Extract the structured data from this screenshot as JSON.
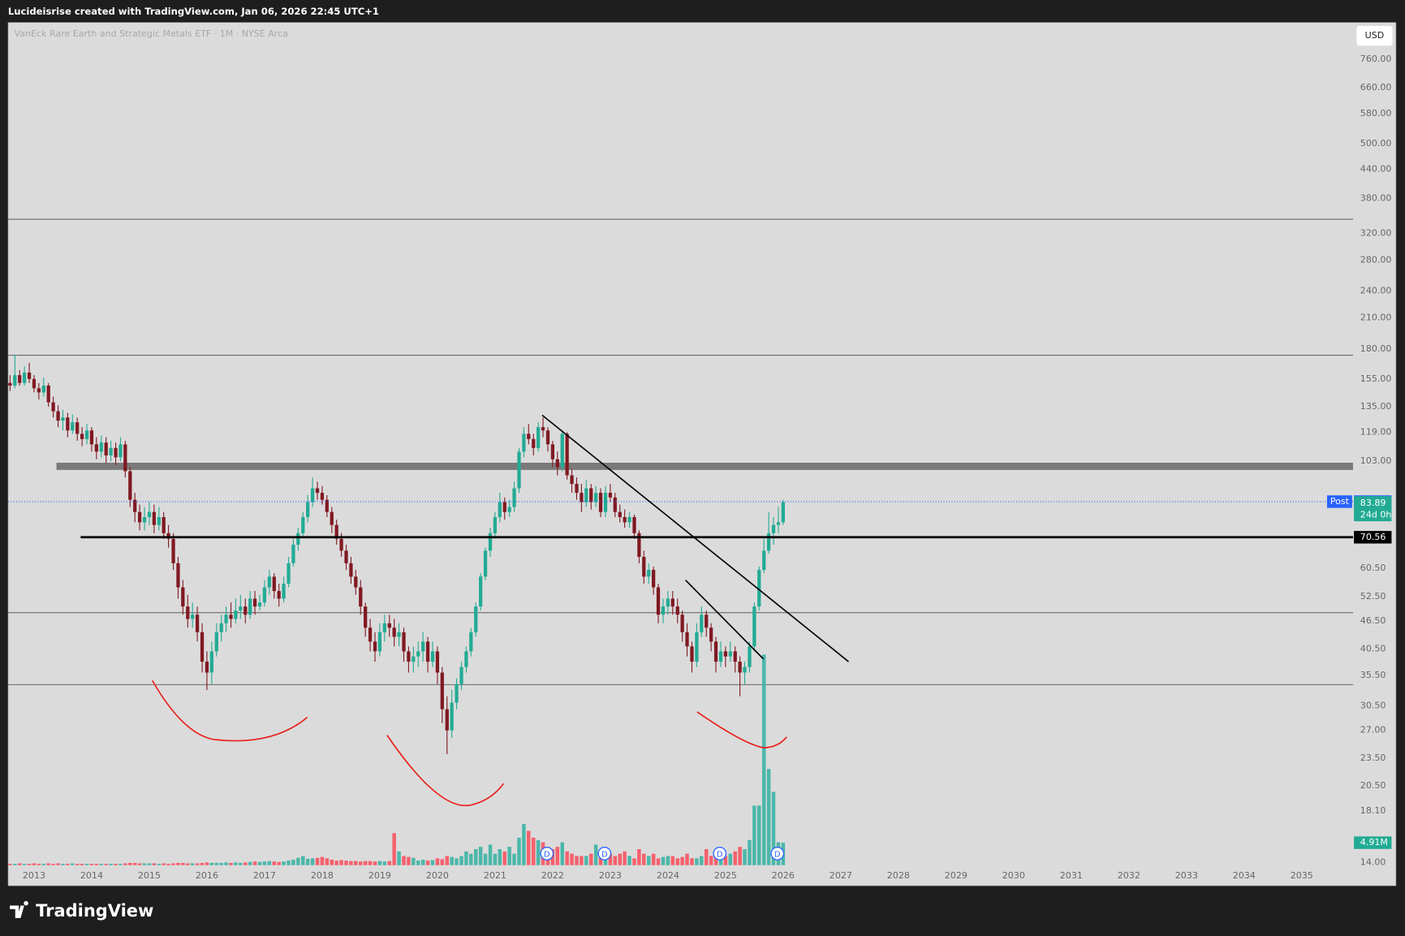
{
  "header": {
    "text": "Lucideisrise created with TradingView.com, Jan 06, 2026 22:45 UTC+1"
  },
  "footer": {
    "brand": "TradingView"
  },
  "chart_data": {
    "type": "candlestick",
    "title": "VanEck Rare Earth and Strategic Metals ETF · 1M · NYSE Arca",
    "currency": "USD",
    "log_scale": true,
    "grid": false,
    "up_color": "#22ab94",
    "down_color": "#801922",
    "volume_up_color": "#3bb3a3",
    "volume_down_color": "#f7525f",
    "xlim": [
      2012.549,
      2035.89
    ],
    "xticks": [
      2013,
      2014,
      2015,
      2016,
      2017,
      2018,
      2019,
      2020,
      2021,
      2022,
      2023,
      2024,
      2025,
      2026,
      2027,
      2028,
      2029,
      2030,
      2031,
      2032,
      2033,
      2034,
      2035
    ],
    "ylim": [
      13.63,
      913
    ],
    "yticks": [
      {
        "value": 760,
        "label": "760.00"
      },
      {
        "value": 660,
        "label": "660.00"
      },
      {
        "value": 580,
        "label": "580.00"
      },
      {
        "value": 500,
        "label": "500.00"
      },
      {
        "value": 440,
        "label": "440.00"
      },
      {
        "value": 380,
        "label": "380.00"
      },
      {
        "value": 320,
        "label": "320.00"
      },
      {
        "value": 280,
        "label": "280.00"
      },
      {
        "value": 240,
        "label": "240.00"
      },
      {
        "value": 210,
        "label": "210.00"
      },
      {
        "value": 180,
        "label": "180.00"
      },
      {
        "value": 155,
        "label": "155.00"
      },
      {
        "value": 135,
        "label": "135.00"
      },
      {
        "value": 119,
        "label": "119.00"
      },
      {
        "value": 103,
        "label": "103.00"
      },
      {
        "value": 60.5,
        "label": "60.50"
      },
      {
        "value": 52.5,
        "label": "52.50"
      },
      {
        "value": 46.5,
        "label": "46.50"
      },
      {
        "value": 40.5,
        "label": "40.50"
      },
      {
        "value": 35.5,
        "label": "35.50"
      },
      {
        "value": 30.5,
        "label": "30.50"
      },
      {
        "value": 27,
        "label": "27.00"
      },
      {
        "value": 23.5,
        "label": "23.50"
      },
      {
        "value": 20.5,
        "label": "20.50"
      },
      {
        "value": 18.1,
        "label": "18.10"
      },
      {
        "value": 14,
        "label": "14.00"
      }
    ],
    "x": [
      2012.583,
      2012.667,
      2012.75,
      2012.833,
      2012.917,
      2013,
      2013.083,
      2013.167,
      2013.25,
      2013.333,
      2013.417,
      2013.5,
      2013.583,
      2013.667,
      2013.75,
      2013.833,
      2013.917,
      2014,
      2014.083,
      2014.167,
      2014.25,
      2014.333,
      2014.417,
      2014.5,
      2014.583,
      2014.667,
      2014.75,
      2014.833,
      2014.917,
      2015,
      2015.083,
      2015.167,
      2015.25,
      2015.333,
      2015.417,
      2015.5,
      2015.583,
      2015.667,
      2015.75,
      2015.833,
      2015.917,
      2016,
      2016.083,
      2016.167,
      2016.25,
      2016.333,
      2016.417,
      2016.5,
      2016.583,
      2016.667,
      2016.75,
      2016.833,
      2016.917,
      2017,
      2017.083,
      2017.167,
      2017.25,
      2017.333,
      2017.417,
      2017.5,
      2017.583,
      2017.667,
      2017.75,
      2017.833,
      2017.917,
      2018,
      2018.083,
      2018.167,
      2018.25,
      2018.333,
      2018.417,
      2018.5,
      2018.583,
      2018.667,
      2018.75,
      2018.833,
      2018.917,
      2019,
      2019.083,
      2019.167,
      2019.25,
      2019.333,
      2019.417,
      2019.5,
      2019.583,
      2019.667,
      2019.75,
      2019.833,
      2019.917,
      2020,
      2020.083,
      2020.167,
      2020.25,
      2020.333,
      2020.417,
      2020.5,
      2020.583,
      2020.667,
      2020.75,
      2020.833,
      2020.917,
      2021,
      2021.083,
      2021.167,
      2021.25,
      2021.333,
      2021.417,
      2021.5,
      2021.583,
      2021.667,
      2021.75,
      2021.833,
      2021.917,
      2022,
      2022.083,
      2022.167,
      2022.25,
      2022.333,
      2022.417,
      2022.5,
      2022.583,
      2022.667,
      2022.75,
      2022.833,
      2022.917,
      2023,
      2023.083,
      2023.167,
      2023.25,
      2023.333,
      2023.417,
      2023.5,
      2023.583,
      2023.667,
      2023.75,
      2023.833,
      2023.917,
      2024,
      2024.083,
      2024.167,
      2024.25,
      2024.333,
      2024.417,
      2024.5,
      2024.583,
      2024.667,
      2024.75,
      2024.833,
      2024.917,
      2025,
      2025.083,
      2025.167,
      2025.25,
      2025.333,
      2025.417,
      2025.5,
      2025.583,
      2025.667,
      2025.75,
      2025.833,
      2025.917,
      2026
    ],
    "open": [
      152,
      150,
      158,
      152,
      160,
      155,
      148,
      145,
      150,
      138,
      132,
      126,
      128,
      120,
      125,
      118,
      115,
      120,
      112,
      108,
      113,
      106,
      110,
      105,
      112,
      98,
      85,
      80,
      76,
      78,
      80,
      75,
      78,
      72,
      70,
      62,
      55,
      50,
      47,
      48,
      44,
      38,
      36,
      40,
      44,
      46,
      48,
      47,
      49,
      50,
      48,
      52,
      50,
      51,
      55,
      58,
      54,
      52,
      56,
      62,
      68,
      72,
      78,
      84,
      90,
      88,
      85,
      80,
      75,
      70,
      66,
      62,
      58,
      55,
      50,
      45,
      42,
      40,
      44,
      46,
      45,
      43,
      44,
      40,
      38,
      39,
      40,
      42,
      38,
      40,
      36,
      30,
      27,
      31,
      34,
      37,
      40,
      44,
      50,
      58,
      66,
      72,
      78,
      84,
      80,
      82,
      90,
      108,
      118,
      115,
      110,
      122,
      120,
      112,
      104,
      100,
      118,
      96,
      92,
      88,
      84,
      90,
      84,
      88,
      80,
      88,
      86,
      80,
      78,
      76,
      78,
      72,
      64,
      58,
      60,
      55,
      48,
      50,
      52,
      50,
      48,
      44,
      41,
      38,
      44,
      48,
      45,
      42,
      38,
      40,
      39,
      40,
      38,
      36,
      37,
      41,
      50,
      60,
      66,
      72,
      75,
      76
    ],
    "high": [
      158,
      175,
      162,
      165,
      168,
      158,
      152,
      156,
      152,
      142,
      136,
      133,
      131,
      130,
      128,
      122,
      124,
      122,
      116,
      117,
      116,
      114,
      113,
      116,
      114,
      100,
      88,
      83,
      82,
      84,
      83,
      82,
      80,
      75,
      72,
      64,
      57,
      53,
      51,
      50,
      46,
      40,
      42,
      46,
      48,
      50,
      51,
      52,
      53,
      52,
      54,
      54,
      53,
      57,
      60,
      59,
      56,
      58,
      64,
      70,
      74,
      80,
      87,
      95,
      93,
      91,
      87,
      82,
      77,
      72,
      68,
      64,
      60,
      57,
      51,
      47,
      44,
      46,
      48,
      48,
      47,
      46,
      45,
      41,
      41,
      42,
      44,
      43,
      42,
      41,
      37,
      32,
      33,
      35,
      38,
      41,
      45,
      51,
      59,
      67,
      74,
      80,
      88,
      86,
      85,
      93,
      110,
      122,
      124,
      118,
      125,
      128,
      122,
      114,
      108,
      120,
      119,
      99,
      95,
      92,
      94,
      92,
      91,
      90,
      91,
      92,
      88,
      83,
      81,
      80,
      79,
      73,
      66,
      62,
      61,
      56,
      52,
      54,
      54,
      52,
      49,
      46,
      42,
      46,
      50,
      49,
      46,
      43,
      42,
      41,
      42,
      41,
      39,
      38,
      42,
      51,
      61,
      70,
      80,
      78,
      82,
      85
    ],
    "low": [
      146,
      148,
      150,
      150,
      152,
      145,
      140,
      142,
      135,
      128,
      122,
      120,
      116,
      118,
      114,
      111,
      112,
      108,
      104,
      105,
      102,
      103,
      101,
      103,
      95,
      82,
      76,
      73,
      73,
      75,
      72,
      73,
      70,
      67,
      60,
      52,
      48,
      45,
      45,
      42,
      36,
      33,
      34,
      39,
      42,
      44,
      45,
      46,
      47,
      46,
      47,
      48,
      49,
      50,
      53,
      52,
      50,
      51,
      55,
      61,
      66,
      71,
      76,
      82,
      85,
      83,
      78,
      72,
      68,
      64,
      60,
      56,
      53,
      48,
      43,
      40,
      38,
      39,
      42,
      43,
      41,
      41,
      38,
      36,
      36,
      37,
      38,
      36,
      37,
      34,
      28,
      24,
      26,
      30,
      33,
      36,
      39,
      43,
      49,
      57,
      64,
      70,
      76,
      77,
      78,
      80,
      88,
      105,
      112,
      106,
      108,
      116,
      108,
      100,
      96,
      98,
      94,
      88,
      85,
      80,
      82,
      81,
      82,
      78,
      78,
      84,
      78,
      76,
      74,
      74,
      70,
      62,
      56,
      56,
      53,
      46,
      46,
      48,
      48,
      46,
      42,
      39,
      36,
      37,
      43,
      43,
      40,
      36,
      37,
      37,
      38,
      36,
      32,
      34,
      36,
      40,
      49,
      59,
      65,
      68,
      72,
      75
    ],
    "close": [
      150,
      158,
      152,
      160,
      155,
      148,
      145,
      150,
      138,
      132,
      126,
      128,
      120,
      125,
      118,
      115,
      120,
      112,
      108,
      113,
      106,
      110,
      105,
      112,
      98,
      85,
      80,
      76,
      78,
      80,
      75,
      78,
      72,
      70,
      62,
      55,
      50,
      47,
      48,
      44,
      38,
      36,
      40,
      44,
      46,
      48,
      47,
      49,
      50,
      48,
      52,
      50,
      51,
      55,
      58,
      54,
      52,
      56,
      62,
      68,
      72,
      78,
      84,
      90,
      88,
      85,
      80,
      75,
      70,
      66,
      62,
      58,
      55,
      50,
      45,
      42,
      40,
      44,
      46,
      45,
      43,
      44,
      40,
      38,
      39,
      40,
      42,
      38,
      40,
      36,
      30,
      27,
      31,
      34,
      37,
      40,
      44,
      50,
      58,
      66,
      72,
      78,
      84,
      80,
      82,
      90,
      108,
      118,
      115,
      110,
      122,
      120,
      112,
      104,
      100,
      118,
      96,
      92,
      88,
      84,
      90,
      84,
      88,
      80,
      88,
      86,
      80,
      78,
      76,
      78,
      72,
      64,
      58,
      60,
      55,
      48,
      50,
      52,
      50,
      48,
      44,
      41,
      38,
      44,
      48,
      45,
      42,
      38,
      40,
      39,
      40,
      38,
      36,
      37,
      41,
      50,
      60,
      66,
      72,
      75,
      76,
      84
    ],
    "volume": {
      "ylim": [
        0,
        46
      ],
      "values": [
        0.3,
        0.3,
        0.4,
        0.3,
        0.3,
        0.4,
        0.3,
        0.3,
        0.4,
        0.3,
        0.4,
        0.3,
        0.3,
        0.4,
        0.3,
        0.3,
        0.3,
        0.3,
        0.3,
        0.3,
        0.3,
        0.3,
        0.3,
        0.3,
        0.4,
        0.5,
        0.5,
        0.4,
        0.4,
        0.4,
        0.4,
        0.3,
        0.4,
        0.3,
        0.4,
        0.5,
        0.5,
        0.4,
        0.4,
        0.4,
        0.5,
        0.6,
        0.5,
        0.5,
        0.5,
        0.6,
        0.5,
        0.6,
        0.5,
        0.6,
        0.7,
        0.8,
        0.7,
        0.8,
        0.9,
        0.8,
        0.7,
        0.8,
        1.0,
        1.2,
        1.6,
        2.0,
        1.4,
        1.5,
        1.6,
        1.8,
        1.5,
        1.2,
        1.0,
        1.1,
        1.0,
        0.9,
        0.9,
        0.8,
        0.9,
        0.9,
        0.8,
        0.9,
        0.8,
        0.9,
        7.0,
        3.0,
        2.0,
        1.8,
        1.6,
        1.0,
        1.2,
        1.0,
        1.1,
        1.5,
        1.3,
        2.0,
        1.8,
        1.5,
        2.0,
        3.0,
        2.5,
        3.5,
        4.0,
        2.5,
        4.5,
        2.5,
        3.5,
        3.0,
        4.0,
        2.5,
        6.0,
        9.0,
        7.5,
        6.0,
        5.5,
        5.0,
        4.0,
        3.5,
        4.0,
        5.0,
        3.0,
        2.5,
        2.0,
        2.0,
        2.0,
        2.5,
        4.5,
        3.0,
        3.5,
        2.5,
        2.0,
        2.5,
        3.0,
        2.0,
        1.5,
        3.5,
        2.5,
        2.0,
        2.5,
        1.5,
        1.8,
        2.0,
        2.0,
        1.5,
        1.8,
        2.5,
        1.5,
        1.5,
        2.0,
        3.5,
        2.0,
        2.5,
        3.0,
        2.0,
        2.5,
        3.0,
        4.0,
        3.5,
        5.5,
        13.0,
        13.0,
        46.0,
        21.0,
        16.0,
        5.0,
        4.91
      ],
      "tag": {
        "value": 4.91,
        "label": "4.91M",
        "color": "#22ab94"
      }
    },
    "dividends": {
      "label": "D",
      "x": [
        2021.9,
        2022.9,
        2024.9,
        2025.9
      ]
    },
    "levels": [
      343,
      174.5,
      48.5,
      33.9
    ],
    "zone": 100.4,
    "tags": [
      {
        "name": "Post",
        "value": 84.23,
        "color": "#2962ff"
      },
      {
        "value": 83.89,
        "note": "24d 0h",
        "color": "#22ab94"
      },
      {
        "value": 70.56,
        "color": "#000000"
      }
    ]
  }
}
